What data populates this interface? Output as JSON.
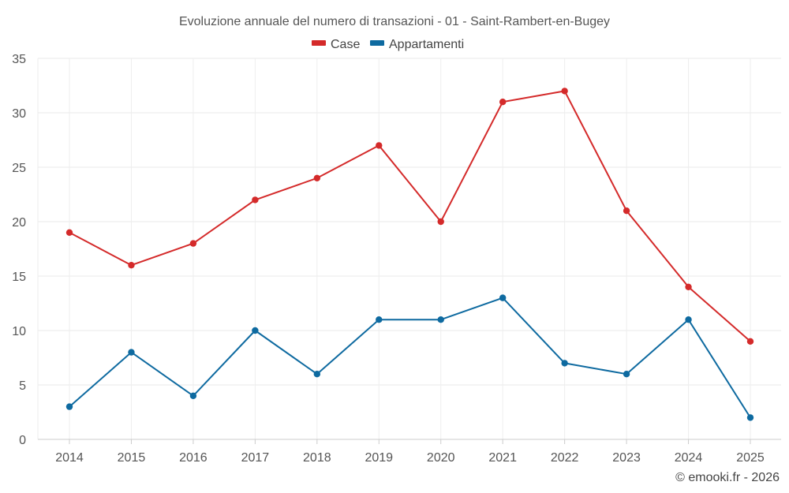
{
  "chart_data": {
    "type": "line",
    "title": "Evoluzione annuale del numero di transazioni - 01 - Saint-Rambert-en-Bugey",
    "categories": [
      "2014",
      "2015",
      "2016",
      "2017",
      "2018",
      "2019",
      "2020",
      "2021",
      "2022",
      "2023",
      "2024",
      "2025"
    ],
    "series": [
      {
        "name": "Case",
        "color": "#d42a2a",
        "values": [
          19,
          16,
          18,
          22,
          24,
          27,
          20,
          31,
          32,
          21,
          14,
          9
        ]
      },
      {
        "name": "Appartamenti",
        "color": "#0e6aa0",
        "values": [
          3,
          8,
          4,
          10,
          6,
          11,
          11,
          13,
          7,
          6,
          11,
          2
        ]
      }
    ],
    "yticks": [
      0,
      5,
      10,
      15,
      20,
      25,
      30,
      35
    ],
    "ylim": [
      0,
      35
    ],
    "xlabel": "",
    "ylabel": "",
    "grid": true,
    "legend_position": "top-center"
  },
  "credit": "© emooki.fr - 2026"
}
